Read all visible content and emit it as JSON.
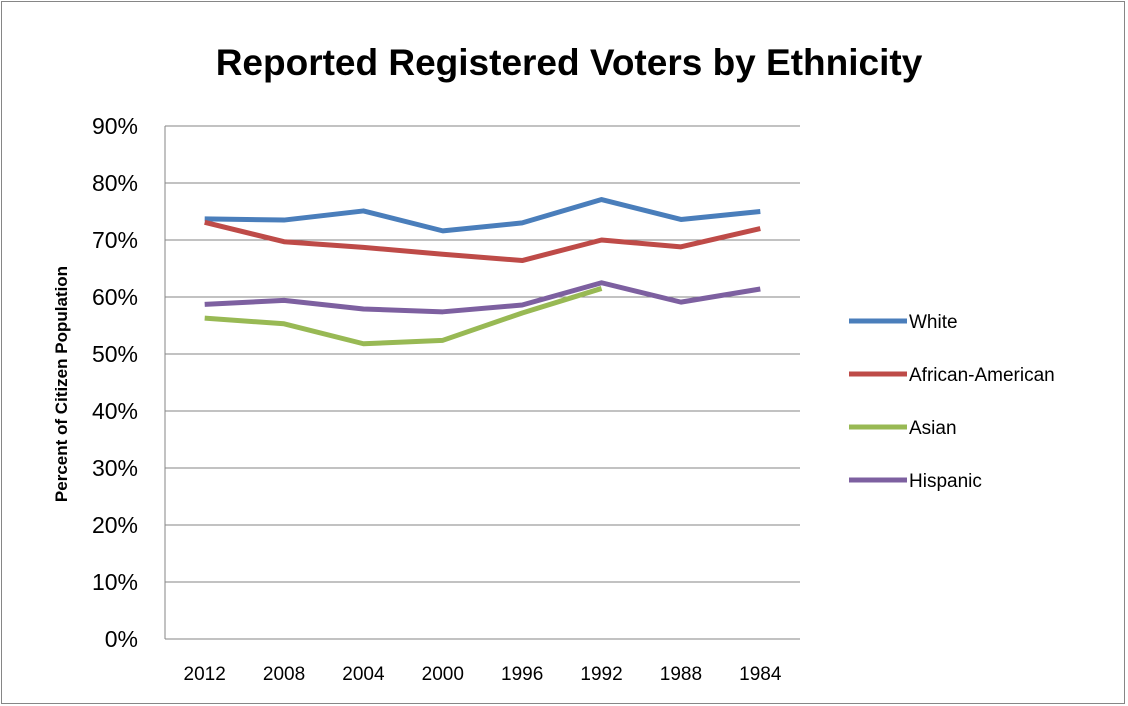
{
  "chart_data": {
    "type": "line",
    "title": "Reported Registered Voters by Ethnicity",
    "xlabel": "",
    "ylabel": "Percent of Citizen Population",
    "categories": [
      "2012",
      "2008",
      "2004",
      "2000",
      "1996",
      "1992",
      "1988",
      "1984"
    ],
    "ylim": [
      0,
      90
    ],
    "ytick_values": [
      0,
      10,
      20,
      30,
      40,
      50,
      60,
      70,
      80,
      90
    ],
    "ytick_labels": [
      "0%",
      "10%",
      "20%",
      "30%",
      "40%",
      "50%",
      "60%",
      "70%",
      "80%",
      "90%"
    ],
    "grid": true,
    "legend_position": "right",
    "series": [
      {
        "name": "White",
        "color": "#4a7ebb",
        "values": [
          73.7,
          73.5,
          75.1,
          71.6,
          73.0,
          77.1,
          73.6,
          75.0
        ]
      },
      {
        "name": "African-American",
        "color": "#be4b48",
        "values": [
          73.1,
          69.7,
          68.7,
          67.5,
          66.4,
          70.0,
          68.8,
          72.0
        ]
      },
      {
        "name": "Asian",
        "color": "#98b954",
        "values": [
          56.3,
          55.3,
          51.8,
          52.4,
          57.2,
          61.5,
          null,
          null
        ]
      },
      {
        "name": "Hispanic",
        "color": "#7d60a0",
        "values": [
          58.7,
          59.4,
          57.9,
          57.4,
          58.6,
          62.5,
          59.1,
          61.4
        ]
      }
    ]
  }
}
